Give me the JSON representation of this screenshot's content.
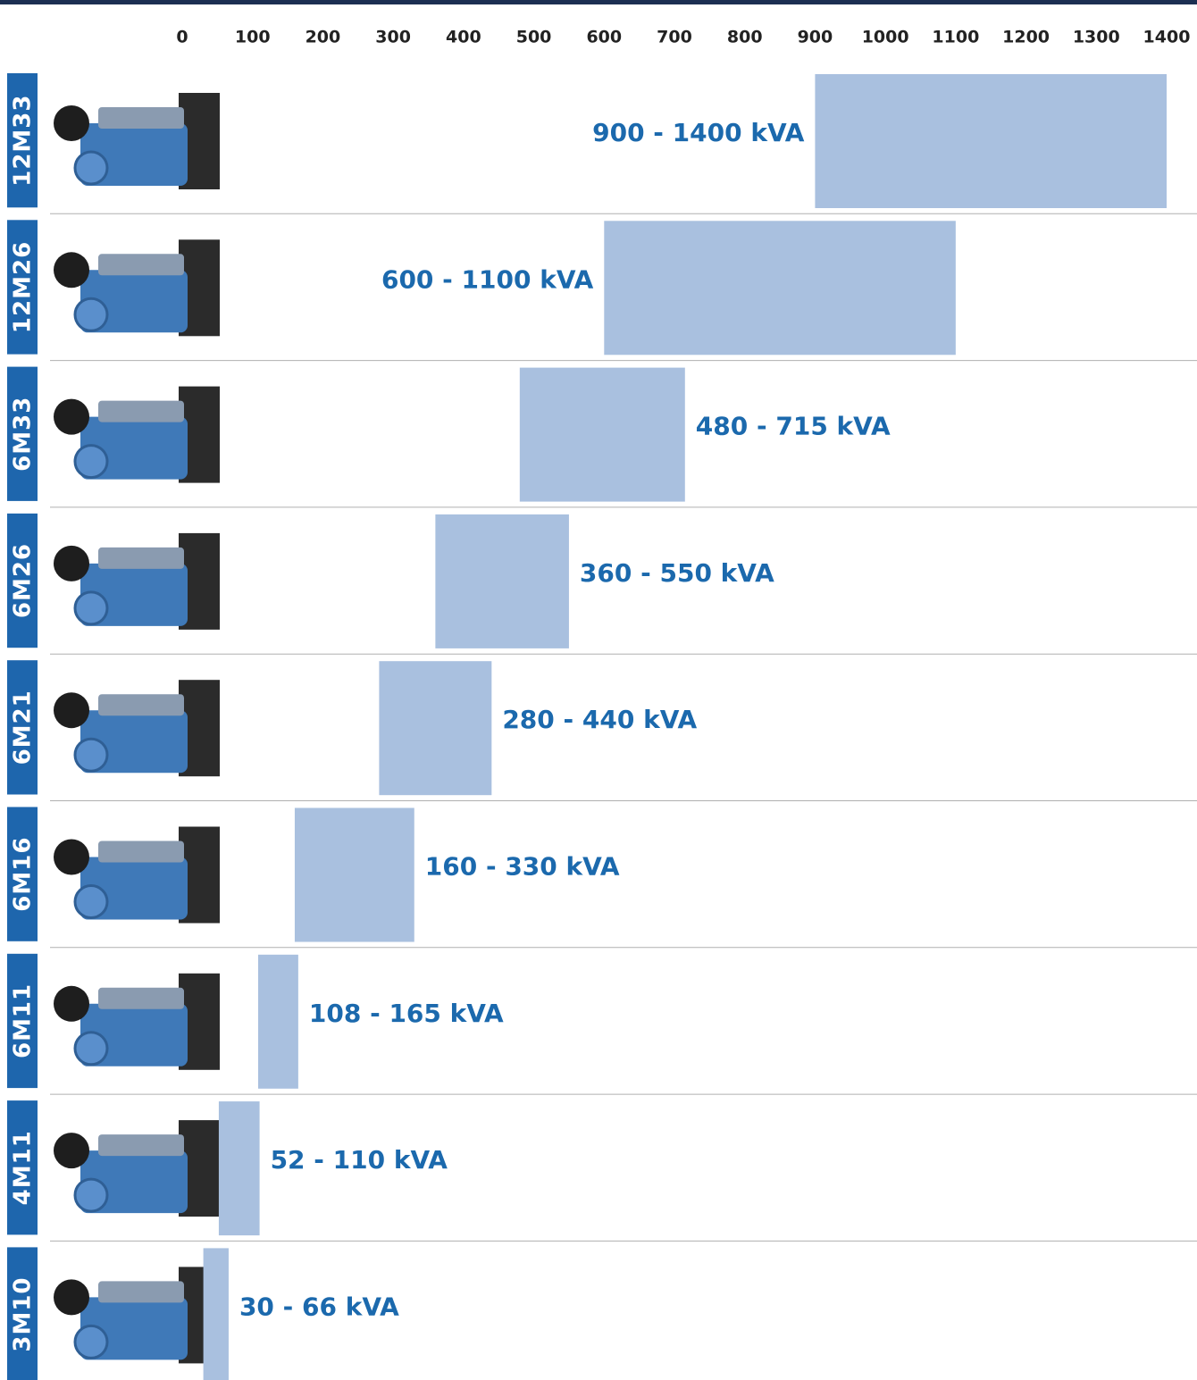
{
  "chart_data": {
    "type": "range-bar",
    "categories": [
      "12M33",
      "12M26",
      "6M33",
      "6M26",
      "6M21",
      "6M16",
      "6M11",
      "4M11",
      "3M10"
    ],
    "low": [
      900,
      600,
      480,
      360,
      280,
      160,
      108,
      52,
      30
    ],
    "high": [
      1400,
      1100,
      715,
      550,
      440,
      330,
      165,
      110,
      66
    ],
    "value_labels": [
      "900 - 1400 kVA",
      "600 - 1100 kVA",
      "480 - 715 kVA",
      "360 - 550 kVA",
      "280 - 440 kVA",
      "160 - 330 kVA",
      "108 - 165 kVA",
      "52 - 110 kVA",
      "30 - 66 kVA"
    ],
    "color": "#a9c0df",
    "xlim": [
      0,
      1400
    ],
    "xticks": [
      0,
      100,
      200,
      300,
      400,
      500,
      600,
      700,
      800,
      900,
      1000,
      1100,
      1200,
      1300,
      1400
    ]
  }
}
